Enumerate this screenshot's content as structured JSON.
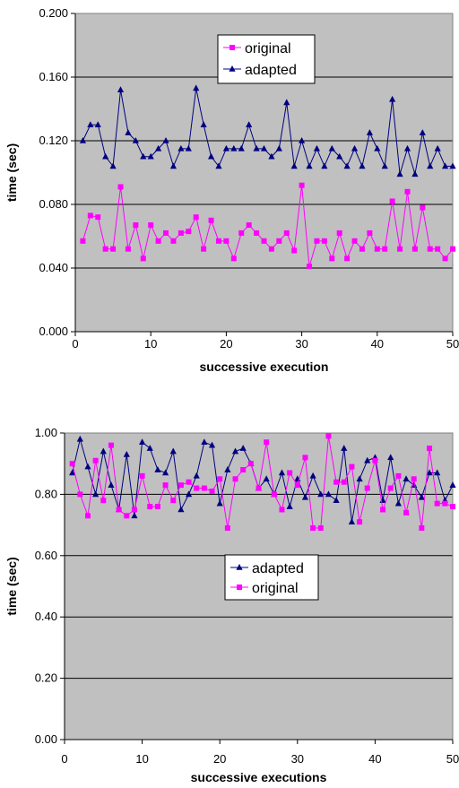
{
  "chart_data": [
    {
      "type": "line",
      "xlabel": "successive execution",
      "ylabel": "time (sec)",
      "xlim": [
        0,
        50
      ],
      "ylim": [
        0,
        0.2
      ],
      "x_ticks": [
        "0",
        "10",
        "20",
        "30",
        "40",
        "50"
      ],
      "y_ticks": [
        "0.000",
        "0.040",
        "0.080",
        "0.120",
        "0.160",
        "0.200"
      ],
      "grid": "horizontal",
      "background": "#c0c0c0",
      "legend_position": "top-center",
      "legend_order": [
        "original",
        "adapted"
      ],
      "x": [
        1,
        2,
        3,
        4,
        5,
        6,
        7,
        8,
        9,
        10,
        11,
        12,
        13,
        14,
        15,
        16,
        17,
        18,
        19,
        20,
        21,
        22,
        23,
        24,
        25,
        26,
        27,
        28,
        29,
        30,
        31,
        32,
        33,
        34,
        35,
        36,
        37,
        38,
        39,
        40,
        41,
        42,
        43,
        44,
        45,
        46,
        47,
        48,
        49,
        50
      ],
      "series": [
        {
          "name": "original",
          "color": "#ff00ff",
          "marker": "square",
          "values": [
            0.057,
            0.073,
            0.072,
            0.052,
            0.052,
            0.091,
            0.052,
            0.067,
            0.046,
            0.067,
            0.057,
            0.062,
            0.057,
            0.062,
            0.063,
            0.072,
            0.052,
            0.07,
            0.057,
            0.057,
            0.046,
            0.062,
            0.067,
            0.062,
            0.057,
            0.052,
            0.057,
            0.062,
            0.051,
            0.092,
            0.041,
            0.057,
            0.057,
            0.046,
            0.062,
            0.046,
            0.057,
            0.052,
            0.062,
            0.052,
            0.052,
            0.082,
            0.052,
            0.088,
            0.052,
            0.078,
            0.052,
            0.052,
            0.046,
            0.052
          ]
        },
        {
          "name": "adapted",
          "color": "#000080",
          "marker": "triangle",
          "values": [
            0.12,
            0.13,
            0.13,
            0.11,
            0.104,
            0.152,
            0.125,
            0.12,
            0.11,
            0.11,
            0.115,
            0.12,
            0.104,
            0.115,
            0.115,
            0.153,
            0.13,
            0.11,
            0.104,
            0.115,
            0.115,
            0.115,
            0.13,
            0.115,
            0.115,
            0.11,
            0.115,
            0.144,
            0.104,
            0.12,
            0.104,
            0.115,
            0.104,
            0.115,
            0.11,
            0.104,
            0.115,
            0.104,
            0.125,
            0.115,
            0.104,
            0.146,
            0.099,
            0.115,
            0.099,
            0.125,
            0.104,
            0.115,
            0.104,
            0.104
          ]
        }
      ]
    },
    {
      "type": "line",
      "xlabel": "successive executions",
      "ylabel": "time (sec)",
      "xlim": [
        0,
        50
      ],
      "ylim": [
        0,
        1.0
      ],
      "x_ticks": [
        "0",
        "10",
        "20",
        "30",
        "40",
        "50"
      ],
      "y_ticks": [
        "0.00",
        "0.20",
        "0.40",
        "0.60",
        "0.80",
        "1.00"
      ],
      "grid": "horizontal",
      "background": "#c0c0c0",
      "legend_position": "center",
      "legend_order": [
        "adapted",
        "original"
      ],
      "x": [
        1,
        2,
        3,
        4,
        5,
        6,
        7,
        8,
        9,
        10,
        11,
        12,
        13,
        14,
        15,
        16,
        17,
        18,
        19,
        20,
        21,
        22,
        23,
        24,
        25,
        26,
        27,
        28,
        29,
        30,
        31,
        32,
        33,
        34,
        35,
        36,
        37,
        38,
        39,
        40,
        41,
        42,
        43,
        44,
        45,
        46,
        47,
        48,
        49,
        50
      ],
      "series": [
        {
          "name": "adapted",
          "color": "#000080",
          "marker": "triangle",
          "values": [
            0.87,
            0.98,
            0.89,
            0.8,
            0.94,
            0.83,
            0.75,
            0.93,
            0.73,
            0.97,
            0.95,
            0.88,
            0.87,
            0.94,
            0.75,
            0.8,
            0.86,
            0.97,
            0.96,
            0.77,
            0.88,
            0.94,
            0.95,
            0.9,
            0.82,
            0.85,
            0.8,
            0.87,
            0.76,
            0.85,
            0.79,
            0.86,
            0.8,
            0.8,
            0.78,
            0.95,
            0.71,
            0.85,
            0.91,
            0.92,
            0.78,
            0.92,
            0.77,
            0.85,
            0.83,
            0.79,
            0.87,
            0.87,
            0.78,
            0.83
          ]
        },
        {
          "name": "original",
          "color": "#ff00ff",
          "marker": "square",
          "values": [
            0.9,
            0.8,
            0.73,
            0.91,
            0.78,
            0.96,
            0.75,
            0.73,
            0.75,
            0.86,
            0.76,
            0.76,
            0.83,
            0.78,
            0.83,
            0.84,
            0.82,
            0.82,
            0.81,
            0.85,
            0.69,
            0.85,
            0.88,
            0.9,
            0.82,
            0.97,
            0.8,
            0.75,
            0.87,
            0.83,
            0.92,
            0.69,
            0.69,
            0.99,
            0.84,
            0.84,
            0.89,
            0.71,
            0.82,
            0.91,
            0.75,
            0.82,
            0.86,
            0.74,
            0.85,
            0.69,
            0.95,
            0.77,
            0.77,
            0.76
          ]
        }
      ]
    }
  ]
}
